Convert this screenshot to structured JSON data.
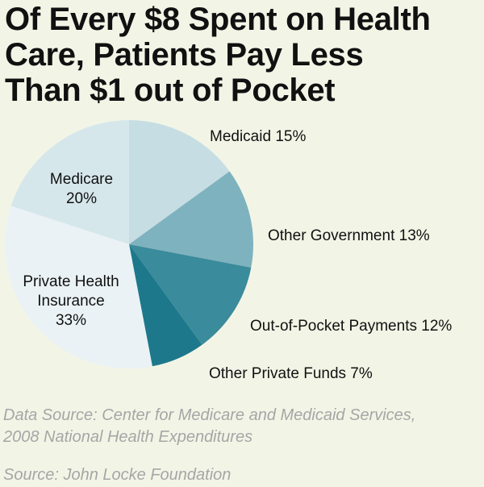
{
  "title_lines": [
    "Of Every $8 Spent on Health",
    "Care, Patients Pay Less",
    "Than $1 out of Pocket"
  ],
  "chart_data": {
    "type": "pie",
    "slices": [
      {
        "label": "Medicaid",
        "value": 15,
        "label_lines": [
          "Medicaid 15%"
        ],
        "color": "#c6dde3"
      },
      {
        "label": "Other Government",
        "value": 13,
        "label_lines": [
          "Other Government 13%"
        ],
        "color": "#7eb2be"
      },
      {
        "label": "Out-of-Pocket Payments",
        "value": 12,
        "label_lines": [
          "Out-of-Pocket Payments 12%"
        ],
        "color": "#3a8b9b"
      },
      {
        "label": "Other Private Funds",
        "value": 7,
        "label_lines": [
          "Other Private Funds 7%"
        ],
        "color": "#1d788c"
      },
      {
        "label": "Private Health Insurance",
        "value": 33,
        "label_lines": [
          "Private Health",
          "Insurance",
          "33%"
        ],
        "color": "#eaf2f5"
      },
      {
        "label": "Medicare",
        "value": 20,
        "label_lines": [
          "Medicare",
          "20%"
        ],
        "color": "#d6e7ec"
      }
    ]
  },
  "data_source_lines": [
    "Data Source: Center for Medicare and Medicaid Services,",
    "2008 National Health Expenditures"
  ],
  "source": "Source: John Locke Foundation"
}
